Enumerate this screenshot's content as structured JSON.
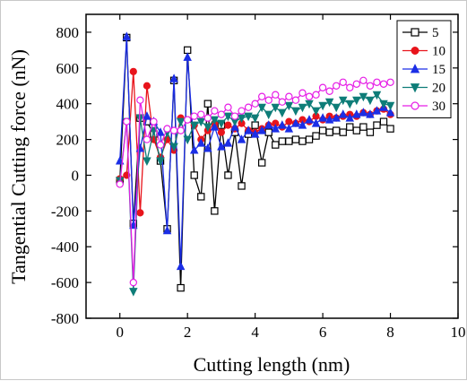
{
  "chart_data": {
    "type": "line",
    "xlabel": "Cutting length (nm)",
    "ylabel": "Tangential Cutting force (nN)",
    "xlim": [
      -1,
      10
    ],
    "ylim": [
      -800,
      900
    ],
    "xticks": [
      0,
      2,
      4,
      6,
      8,
      10
    ],
    "yticks": [
      -800,
      -600,
      -400,
      -200,
      0,
      200,
      400,
      600,
      800
    ],
    "grid": false,
    "legend_position": "top-right",
    "series": [
      {
        "name": "5",
        "color": "#000000",
        "marker": "square-open",
        "x": [
          0,
          0.2,
          0.4,
          0.6,
          0.8,
          1.0,
          1.2,
          1.4,
          1.6,
          1.8,
          2.0,
          2.2,
          2.4,
          2.6,
          2.8,
          3.0,
          3.2,
          3.4,
          3.6,
          3.8,
          4.0,
          4.2,
          4.4,
          4.6,
          4.8,
          5.0,
          5.2,
          5.4,
          5.6,
          5.8,
          6.0,
          6.2,
          6.4,
          6.6,
          6.8,
          7.0,
          7.2,
          7.4,
          7.6,
          7.8,
          8.0
        ],
        "y": [
          -30,
          770,
          -270,
          320,
          300,
          230,
          80,
          -300,
          530,
          -630,
          700,
          0,
          -120,
          400,
          -200,
          280,
          0,
          240,
          -60,
          230,
          280,
          70,
          240,
          170,
          190,
          190,
          200,
          190,
          200,
          220,
          250,
          240,
          250,
          240,
          270,
          250,
          270,
          240,
          280,
          300,
          260
        ]
      },
      {
        "name": "10",
        "color": "#e8141b",
        "marker": "circle-filled",
        "x": [
          0,
          0.2,
          0.4,
          0.6,
          0.8,
          1.0,
          1.2,
          1.4,
          1.6,
          1.8,
          2.0,
          2.2,
          2.4,
          2.6,
          2.8,
          3.0,
          3.2,
          3.4,
          3.6,
          3.8,
          4.0,
          4.2,
          4.4,
          4.6,
          4.8,
          5.0,
          5.2,
          5.4,
          5.6,
          5.8,
          6.0,
          6.2,
          6.4,
          6.6,
          6.8,
          7.0,
          7.2,
          7.4,
          7.6,
          7.8,
          8.0
        ],
        "y": [
          -20,
          0,
          580,
          -210,
          500,
          200,
          100,
          200,
          140,
          320,
          310,
          280,
          200,
          250,
          290,
          240,
          280,
          260,
          290,
          250,
          240,
          260,
          280,
          290,
          270,
          300,
          290,
          310,
          300,
          330,
          310,
          330,
          320,
          330,
          340,
          330,
          350,
          340,
          360,
          370,
          340
        ]
      },
      {
        "name": "15",
        "color": "#1b2ee6",
        "marker": "triangle-up",
        "x": [
          0,
          0.2,
          0.4,
          0.6,
          0.8,
          1.0,
          1.2,
          1.4,
          1.6,
          1.8,
          2.0,
          2.2,
          2.4,
          2.6,
          2.8,
          3.0,
          3.2,
          3.4,
          3.6,
          3.8,
          4.0,
          4.2,
          4.4,
          4.6,
          4.8,
          5.0,
          5.2,
          5.4,
          5.6,
          5.8,
          6.0,
          6.2,
          6.4,
          6.6,
          6.8,
          7.0,
          7.2,
          7.4,
          7.6,
          7.8,
          8.0
        ],
        "y": [
          80,
          775,
          -280,
          150,
          330,
          300,
          240,
          -310,
          540,
          -510,
          660,
          140,
          180,
          150,
          270,
          160,
          180,
          270,
          200,
          250,
          230,
          250,
          280,
          260,
          280,
          260,
          290,
          280,
          310,
          290,
          320,
          310,
          320,
          340,
          320,
          340,
          350,
          340,
          360,
          380,
          350
        ]
      },
      {
        "name": "20",
        "color": "#0e7d78",
        "marker": "triangle-down",
        "x": [
          0,
          0.2,
          0.4,
          0.6,
          0.8,
          1.0,
          1.2,
          1.4,
          1.6,
          1.8,
          2.0,
          2.2,
          2.4,
          2.6,
          2.8,
          3.0,
          3.2,
          3.4,
          3.6,
          3.8,
          4.0,
          4.2,
          4.4,
          4.6,
          4.8,
          5.0,
          5.2,
          5.4,
          5.6,
          5.8,
          6.0,
          6.2,
          6.4,
          6.6,
          6.8,
          7.0,
          7.2,
          7.4,
          7.6,
          7.8,
          8.0
        ],
        "y": [
          -30,
          300,
          -650,
          320,
          80,
          250,
          80,
          240,
          160,
          300,
          200,
          280,
          300,
          270,
          310,
          290,
          330,
          300,
          320,
          330,
          320,
          380,
          340,
          380,
          350,
          390,
          360,
          380,
          400,
          360,
          390,
          410,
          380,
          420,
          400,
          420,
          440,
          420,
          450,
          400,
          390
        ]
      },
      {
        "name": "30",
        "color": "#e61fe6",
        "marker": "circle-open",
        "x": [
          0,
          0.2,
          0.4,
          0.6,
          0.8,
          1.0,
          1.2,
          1.4,
          1.6,
          1.8,
          2.0,
          2.2,
          2.4,
          2.6,
          2.8,
          3.0,
          3.2,
          3.4,
          3.6,
          3.8,
          4.0,
          4.2,
          4.4,
          4.6,
          4.8,
          5.0,
          5.2,
          5.4,
          5.6,
          5.8,
          6.0,
          6.2,
          6.4,
          6.6,
          6.8,
          7.0,
          7.2,
          7.4,
          7.6,
          7.8,
          8.0
        ],
        "y": [
          -50,
          300,
          -600,
          420,
          200,
          300,
          170,
          260,
          250,
          250,
          310,
          330,
          340,
          320,
          360,
          340,
          380,
          330,
          360,
          380,
          400,
          440,
          420,
          450,
          410,
          440,
          420,
          460,
          440,
          450,
          490,
          470,
          500,
          520,
          490,
          510,
          530,
          500,
          520,
          510,
          520
        ]
      }
    ]
  }
}
